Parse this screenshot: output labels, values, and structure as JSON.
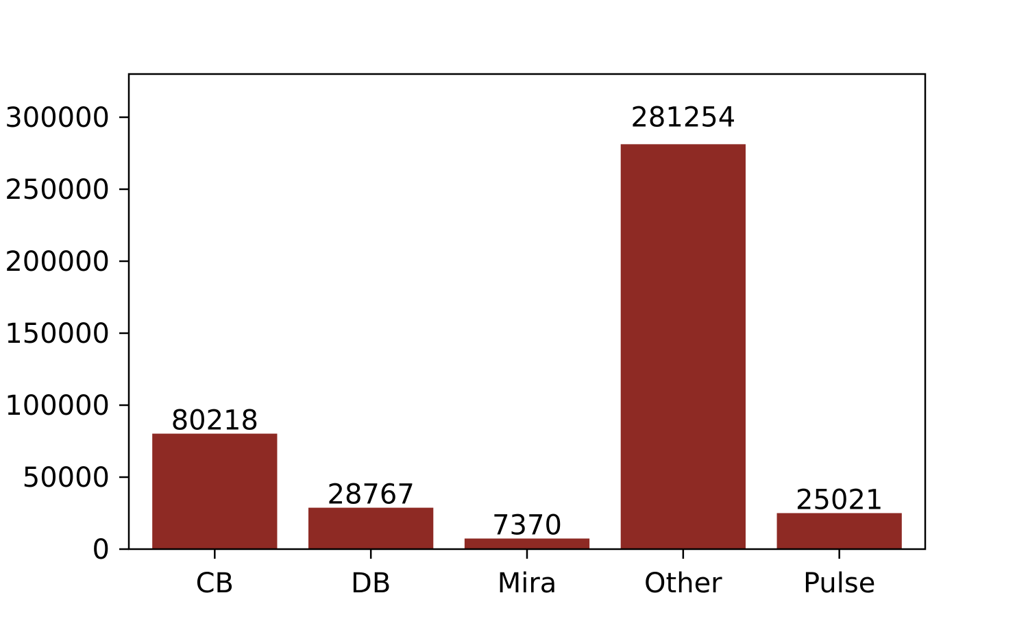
{
  "chart_data": {
    "type": "bar",
    "title": "",
    "xlabel": "",
    "ylabel": "",
    "categories": [
      "CB",
      "DB",
      "Mira",
      "Other",
      "Pulse"
    ],
    "values": [
      80218,
      28767,
      7370,
      281254,
      25021
    ],
    "data_labels": [
      "80218",
      "28767",
      "7370",
      "281254",
      "25021"
    ],
    "ylim": [
      0,
      330000
    ],
    "yticks": [
      0,
      50000,
      100000,
      150000,
      200000,
      250000,
      300000
    ],
    "ytick_labels": [
      "0",
      "50000",
      "100000",
      "150000",
      "200000",
      "250000",
      "300000"
    ],
    "bar_color": "#8e2a24",
    "grid": false,
    "legend": "none"
  }
}
